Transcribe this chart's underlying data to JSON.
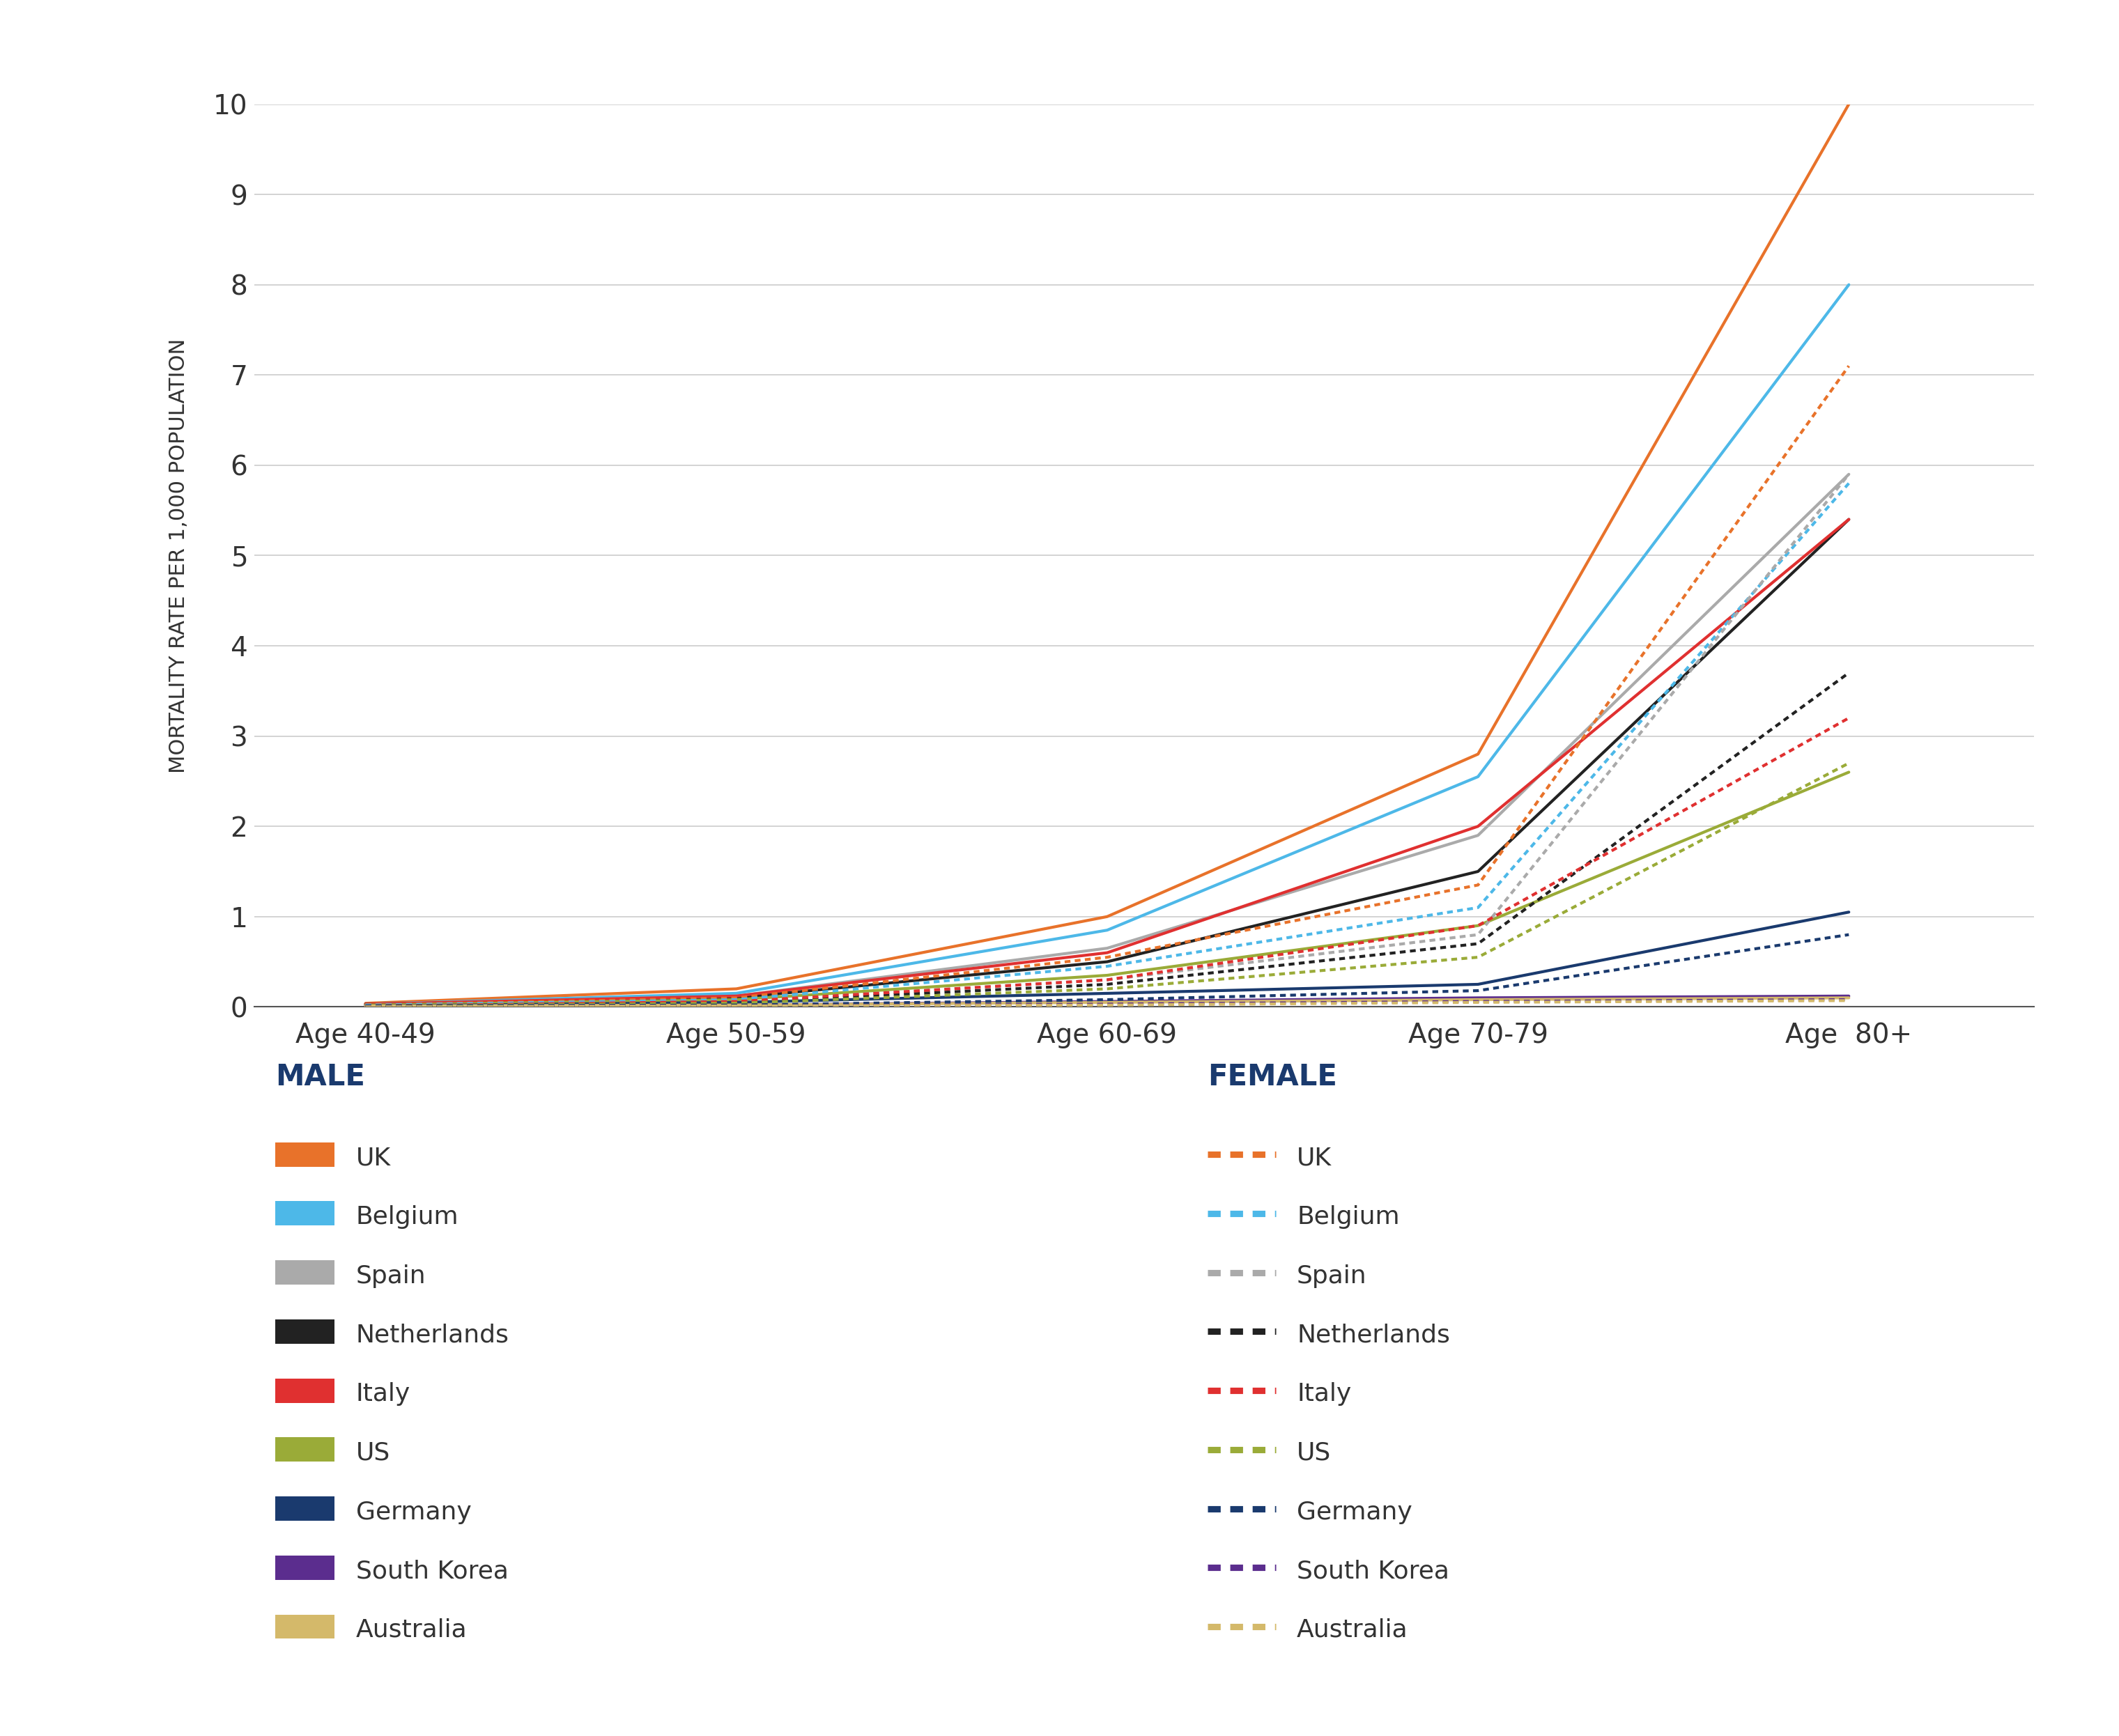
{
  "x_labels": [
    "Age 40-49",
    "Age 50-59",
    "Age 60-69",
    "Age 70-79",
    "Age  80+"
  ],
  "x_positions": [
    0,
    1,
    2,
    3,
    4
  ],
  "countries": [
    "UK",
    "Belgium",
    "Spain",
    "Netherlands",
    "Italy",
    "US",
    "Germany",
    "South Korea",
    "Australia"
  ],
  "colors": {
    "UK": "#E8722A",
    "Belgium": "#4DB8E8",
    "Spain": "#AAAAAA",
    "Netherlands": "#222222",
    "Italy": "#E03030",
    "US": "#9AAB38",
    "Germany": "#1A3A6E",
    "South Korea": "#5B2D8E",
    "Australia": "#D4B96A"
  },
  "male_data": {
    "UK": [
      0.04,
      0.2,
      1.0,
      2.8,
      10.0
    ],
    "Belgium": [
      0.03,
      0.15,
      0.85,
      2.55,
      8.0
    ],
    "Spain": [
      0.03,
      0.12,
      0.65,
      1.9,
      5.9
    ],
    "Netherlands": [
      0.03,
      0.1,
      0.5,
      1.5,
      5.4
    ],
    "Italy": [
      0.03,
      0.12,
      0.6,
      2.0,
      5.4
    ],
    "US": [
      0.02,
      0.08,
      0.35,
      0.9,
      2.6
    ],
    "Germany": [
      0.01,
      0.05,
      0.15,
      0.25,
      1.05
    ],
    "South Korea": [
      0.01,
      0.02,
      0.06,
      0.1,
      0.12
    ],
    "Australia": [
      0.01,
      0.02,
      0.05,
      0.08,
      0.1
    ]
  },
  "female_data": {
    "UK": [
      0.02,
      0.1,
      0.55,
      1.35,
      7.1
    ],
    "Belgium": [
      0.02,
      0.08,
      0.45,
      1.1,
      5.8
    ],
    "Spain": [
      0.01,
      0.06,
      0.3,
      0.8,
      5.9
    ],
    "Netherlands": [
      0.01,
      0.05,
      0.25,
      0.7,
      3.7
    ],
    "Italy": [
      0.01,
      0.06,
      0.3,
      0.9,
      3.2
    ],
    "US": [
      0.01,
      0.04,
      0.2,
      0.55,
      2.7
    ],
    "Germany": [
      0.01,
      0.02,
      0.08,
      0.18,
      0.8
    ],
    "South Korea": [
      0.0,
      0.01,
      0.03,
      0.06,
      0.08
    ],
    "Australia": [
      0.0,
      0.01,
      0.02,
      0.05,
      0.07
    ]
  },
  "ylabel": "MORTALITY RATE PER 1,000 POPULATION",
  "ylim": [
    0,
    10
  ],
  "yticks": [
    0,
    1,
    2,
    3,
    4,
    5,
    6,
    7,
    8,
    9,
    10
  ],
  "legend_header_color": "#1A3A6E",
  "text_color": "#333333",
  "background_color": "#FFFFFF",
  "grid_color": "#CCCCCC",
  "line_width": 3.0,
  "dpi": 100
}
